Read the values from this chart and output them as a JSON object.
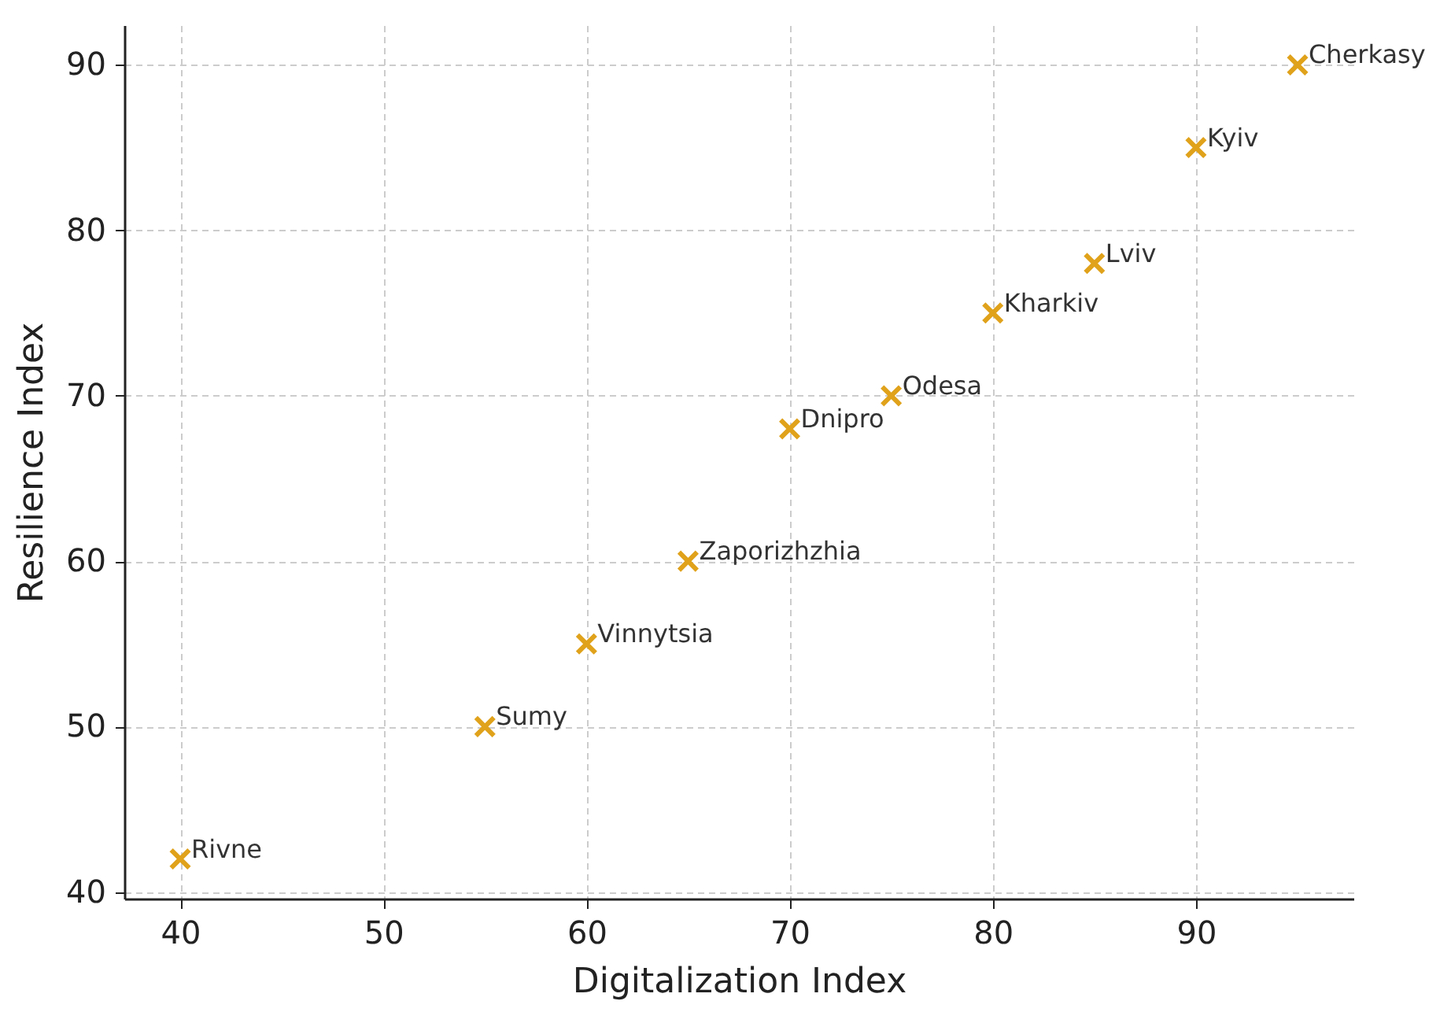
{
  "chart_data": {
    "type": "scatter",
    "xlabel": "Digitalization Index",
    "ylabel": "Resilience Index",
    "x": [
      40,
      55,
      60,
      65,
      70,
      75,
      80,
      85,
      90,
      95
    ],
    "series": [
      {
        "color": "#e0a21b",
        "values": [
          42,
          50,
          55,
          60,
          68,
          70,
          75,
          78,
          85,
          90
        ]
      }
    ],
    "xlim": [
      37.25,
      97.75
    ],
    "xticks": [
      40,
      50,
      60,
      70,
      80,
      90
    ],
    "ylim": [
      39.6,
      92.4
    ],
    "yticks": [
      40,
      50,
      60,
      70,
      80,
      90
    ],
    "grid": true,
    "marker": "cross",
    "annotations": [
      {
        "text": "Rivne",
        "x": 40,
        "y": 42
      },
      {
        "text": "Sumy",
        "x": 55,
        "y": 50
      },
      {
        "text": "Vinnytsia",
        "x": 60,
        "y": 55
      },
      {
        "text": "Zaporizhzhia",
        "x": 65,
        "y": 60
      },
      {
        "text": "Dnipro",
        "x": 70,
        "y": 68
      },
      {
        "text": "Odesa",
        "x": 75,
        "y": 70
      },
      {
        "text": "Kharkiv",
        "x": 80,
        "y": 75
      },
      {
        "text": "Lviv",
        "x": 85,
        "y": 78
      },
      {
        "text": "Kyiv",
        "x": 90,
        "y": 85
      },
      {
        "text": "Cherkasy",
        "x": 95,
        "y": 90
      }
    ]
  }
}
